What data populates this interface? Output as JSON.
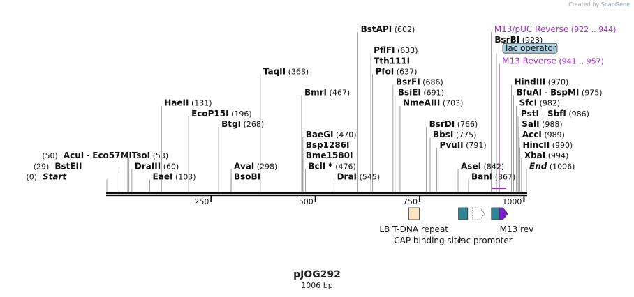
{
  "credit": {
    "prefix": "Created by",
    "brand": "SnapGene"
  },
  "plasmid": {
    "name": "pJOG292",
    "length_label": "1006 bp",
    "length": 1006
  },
  "colors": {
    "enzyme": "#111111",
    "primer": "#9b30c8",
    "lac_operator_fill": "#a9d1e0",
    "lb_tdna": "#fde4c2",
    "cap": "#2f8496",
    "lac_promoter": "#ffffff",
    "m13rev": "#7b1fc8"
  },
  "scale": {
    "ticks": [
      {
        "bp": 250,
        "label": "250"
      },
      {
        "bp": 500,
        "label": "500"
      },
      {
        "bp": 750,
        "label": "750"
      },
      {
        "bp": 1000,
        "label": "1000"
      }
    ]
  },
  "labels": [
    {
      "id": "acui",
      "name": "AcuI",
      "dash": "-",
      "name2": "Eco57MI",
      "pos": "(50)",
      "pos_side": "left",
      "site": 50,
      "row": 12
    },
    {
      "id": "bsteii",
      "name": "BstEII",
      "pos": "(29)",
      "pos_side": "left",
      "site": 29,
      "row": 13
    },
    {
      "id": "start",
      "name": "Start",
      "italic": true,
      "pos": "(0)",
      "pos_side": "left",
      "site": 0,
      "row": 14
    },
    {
      "id": "haeii",
      "name": "HaeII",
      "pos": "(131)",
      "site": 131,
      "row": 7
    },
    {
      "id": "ecop15i",
      "name": "EcoP15I",
      "pos": "(196)",
      "site": 196,
      "row": 8
    },
    {
      "id": "tsoi",
      "name": "TsoI",
      "pos": "(53)",
      "site": 53,
      "row": 12
    },
    {
      "id": "draiii",
      "name": "DraIII",
      "pos": "(60)",
      "site": 60,
      "row": 13
    },
    {
      "id": "eaei",
      "name": "EaeI",
      "pos": "(103)",
      "site": 103,
      "row": 14
    },
    {
      "id": "taqii",
      "name": "TaqII",
      "pos": "(368)",
      "site": 368,
      "row": 4
    },
    {
      "id": "btgi",
      "name": "BtgI",
      "pos": "(268)",
      "site": 268,
      "row": 9
    },
    {
      "id": "avai",
      "name": "AvaI",
      "pos": "(298)",
      "site": 298,
      "row": 13
    },
    {
      "id": "bsobi",
      "name": "BsoBI",
      "pos": "",
      "site": 298,
      "row": 14
    },
    {
      "id": "bmri",
      "name": "BmrI",
      "pos": "(467)",
      "site": 467,
      "row": 6
    },
    {
      "id": "baegi",
      "name": "BaeGI",
      "pos": "(470)",
      "site": 470,
      "row": 10
    },
    {
      "id": "bsp1286i",
      "name": "Bsp1286I",
      "pos": "",
      "site": 470,
      "row": 11
    },
    {
      "id": "bme1580i",
      "name": "Bme1580I",
      "pos": "",
      "site": 470,
      "row": 12
    },
    {
      "id": "bcli",
      "name": "BclI *",
      "pos": "(476)",
      "site": 476,
      "row": 13
    },
    {
      "id": "drai",
      "name": "DraI",
      "pos": "(545)",
      "site": 545,
      "row": 14
    },
    {
      "id": "bstapi",
      "name": "BstAPI",
      "pos": "(602)",
      "site": 602,
      "row": 0
    },
    {
      "id": "pflfi",
      "name": "PflFI",
      "pos": "(633)",
      "site": 633,
      "row": 2
    },
    {
      "id": "tth111i",
      "name": "Tth111I",
      "pos": "",
      "site": 633,
      "row": 3
    },
    {
      "id": "pfoi",
      "name": "PfoI",
      "pos": "(637)",
      "site": 637,
      "row": 4
    },
    {
      "id": "bsrfi",
      "name": "BsrFI",
      "pos": "(686)",
      "site": 686,
      "row": 5
    },
    {
      "id": "bsiei",
      "name": "BsiEI",
      "pos": "(691)",
      "site": 691,
      "row": 6
    },
    {
      "id": "nmeaiii",
      "name": "NmeAIII",
      "pos": "(703)",
      "site": 703,
      "row": 7
    },
    {
      "id": "bsrdi",
      "name": "BsrDI",
      "pos": "(766)",
      "site": 766,
      "row": 9
    },
    {
      "id": "bbsi",
      "name": "BbsI",
      "pos": "(775)",
      "site": 775,
      "row": 10
    },
    {
      "id": "pvuii",
      "name": "PvuII",
      "pos": "(791)",
      "site": 791,
      "row": 11
    },
    {
      "id": "asei",
      "name": "AseI",
      "pos": "(842)",
      "site": 842,
      "row": 13
    },
    {
      "id": "bani",
      "name": "BanI",
      "pos": "(867)",
      "site": 867,
      "row": 14
    },
    {
      "id": "m13puc",
      "name": "M13/pUC Reverse",
      "pos": "(922 .. 944)",
      "site": 922,
      "row": 0,
      "kind": "primer"
    },
    {
      "id": "bsrbi",
      "name": "BsrBI",
      "pos": "(923)",
      "site": 923,
      "row": 1
    },
    {
      "id": "lacop",
      "name": "lac operator",
      "pos": "",
      "site": 934,
      "row": 2,
      "kind": "feature"
    },
    {
      "id": "m13rev",
      "name": "M13 Reverse",
      "pos": "(941 .. 957)",
      "site": 941,
      "row": 3,
      "kind": "primer"
    },
    {
      "id": "hindiii",
      "name": "HindIII",
      "pos": "(970)",
      "site": 970,
      "row": 5
    },
    {
      "id": "bfuai",
      "name": "BfuAI",
      "dash": "-",
      "name2": "BspMI",
      "pos": "(975)",
      "site": 975,
      "row": 6
    },
    {
      "id": "sfci",
      "name": "SfcI",
      "pos": "(982)",
      "site": 982,
      "row": 7
    },
    {
      "id": "psti",
      "name": "PstI",
      "dash": "-",
      "name2": "SbfI",
      "pos": "(986)",
      "site": 986,
      "row": 8
    },
    {
      "id": "sali",
      "name": "SalI",
      "pos": "(988)",
      "site": 988,
      "row": 9
    },
    {
      "id": "acci",
      "name": "AccI",
      "pos": "(989)",
      "site": 989,
      "row": 10
    },
    {
      "id": "hincii",
      "name": "HincII",
      "pos": "(990)",
      "site": 990,
      "row": 11
    },
    {
      "id": "xbai",
      "name": "XbaI",
      "pos": "(994)",
      "site": 994,
      "row": 12
    },
    {
      "id": "end",
      "name": "End",
      "italic": true,
      "pos": "(1006)",
      "site": 1006,
      "row": 13
    }
  ],
  "features": [
    {
      "id": "lb-tdna",
      "name": "LB T-DNA repeat",
      "start": 724,
      "end": 749,
      "shape": "box",
      "color": "#fde4c2"
    },
    {
      "id": "cap",
      "name": "CAP binding site",
      "start": 843,
      "end": 865,
      "shape": "box",
      "color": "#2f8496"
    },
    {
      "id": "lacprom",
      "name": "lac promoter",
      "start": 876,
      "end": 906,
      "shape": "arrow",
      "color": "#ffffff"
    },
    {
      "id": "lacopfeat",
      "name": "lac operator",
      "start": 922,
      "end": 938,
      "shape": "box",
      "color": "#2f8496"
    },
    {
      "id": "m13revprimer",
      "name": "M13 rev",
      "start": 941,
      "end": 957,
      "shape": "arrow",
      "color": "#7b1fc8"
    }
  ]
}
